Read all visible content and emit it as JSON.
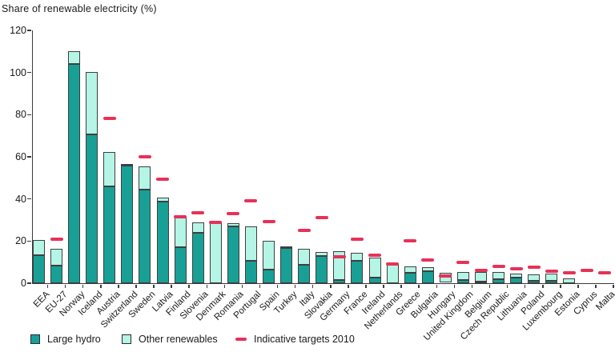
{
  "title": "Share of renewable electricity (%)",
  "legend": {
    "large_hydro": "Large hydro",
    "other_renewables": "Other renewables",
    "targets": "Indicative targets 2010"
  },
  "colors": {
    "large_hydro": "#18A096",
    "other_renewables": "#B5F5E5",
    "target": "#E73158",
    "bar_border": "#3F3F3F",
    "axis": "#3A3A3A",
    "text": "#1A1A1A"
  },
  "chart_data": {
    "type": "bar",
    "stacked": true,
    "title": "Share of renewable electricity (%)",
    "ylabel": "Share of renewable electricity (%)",
    "xlabel": "",
    "ylim": [
      0,
      120
    ],
    "ytick_interval": 20,
    "yticks": [
      0,
      20,
      40,
      60,
      80,
      100,
      120
    ],
    "grid": false,
    "legend_position": "bottom",
    "categories": [
      "EEA",
      "EU-27",
      "Norway",
      "Iceland",
      "Austria",
      "Switzerland",
      "Sweden",
      "Latvia",
      "Finland",
      "Slovenia",
      "Denmark",
      "Romania",
      "Portugal",
      "Spain",
      "Turkey",
      "Italy",
      "Slovakia",
      "Germany",
      "France",
      "Ireland",
      "Netherlands",
      "Greece",
      "Bulgaria",
      "Hungary",
      "United Kingdom",
      "Belgium",
      "Czech Republic",
      "Lithuania",
      "Poland",
      "Luxembourg",
      "Estonia",
      "Cyprus",
      "Malta"
    ],
    "series": [
      {
        "name": "Large hydro",
        "values": [
          13.3,
          8.2,
          104,
          70.5,
          46,
          56,
          44.4,
          38.7,
          17.1,
          24.1,
          0,
          26.9,
          10.8,
          6.3,
          16.6,
          8.9,
          13.1,
          1.5,
          10.8,
          2.5,
          0.1,
          4.8,
          5.7,
          0.2,
          1.5,
          0.6,
          1.9,
          2.5,
          1.0,
          1.0,
          0,
          0,
          0
        ]
      },
      {
        "name": "Other renewables",
        "values": [
          7.4,
          8.3,
          6,
          29.8,
          16.2,
          0.3,
          11,
          1.9,
          14,
          4.7,
          28.9,
          1.7,
          16.1,
          14,
          0.4,
          7.3,
          1.9,
          13.7,
          3.8,
          9.8,
          9.2,
          3.0,
          2.0,
          4.8,
          3.8,
          4.9,
          3.3,
          2.1,
          3.3,
          3.5,
          2.2,
          0,
          0
        ]
      }
    ],
    "targets": {
      "name": "Indicative targets 2010",
      "values": [
        null,
        21,
        null,
        null,
        78.1,
        null,
        60,
        49.3,
        31.5,
        33.6,
        29,
        33,
        39,
        29.4,
        null,
        25,
        31,
        12.5,
        21,
        13.2,
        9,
        20.1,
        11,
        3.6,
        10,
        6,
        8,
        7,
        7.5,
        5.7,
        5.1,
        6,
        5
      ]
    }
  }
}
